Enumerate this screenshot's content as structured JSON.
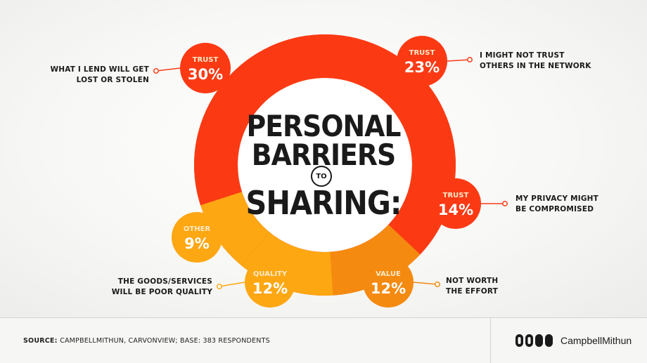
{
  "chart_data": {
    "type": "pie",
    "title_lines": [
      "PERSONAL",
      "BARRIERS",
      "TO",
      "SHARING:"
    ],
    "slices": [
      {
        "category": "TRUST",
        "value": 23,
        "label": "23%",
        "description": "I MIGHT NOT TRUST\nOTHERS IN THE NETWORK",
        "color": "#fb3a14"
      },
      {
        "category": "TRUST",
        "value": 14,
        "label": "14%",
        "description": "MY PRIVACY MIGHT\nBE COMPROMISED",
        "color": "#fb3a14"
      },
      {
        "category": "VALUE",
        "value": 12,
        "label": "12%",
        "description": "NOT WORTH\nTHE EFFORT",
        "color": "#f48a10"
      },
      {
        "category": "QUALITY",
        "value": 12,
        "label": "12%",
        "description": "THE GOODS/SERVICES\nWILL BE POOR QUALITY",
        "color": "#fda713"
      },
      {
        "category": "OTHER",
        "value": 9,
        "label": "9%",
        "description": "",
        "color": "#fda713"
      },
      {
        "category": "TRUST",
        "value": 30,
        "label": "30%",
        "description": "WHAT I LEND WILL GET\nLOST OR STOLEN",
        "color": "#fb3a14"
      }
    ]
  },
  "footer": {
    "source_label": "SOURCE:",
    "source_text": "CAMPBELLMITHUN, CARVONVIEW; BASE:  383 RESPONDENTS",
    "logo_text": "CampbellMithun"
  }
}
